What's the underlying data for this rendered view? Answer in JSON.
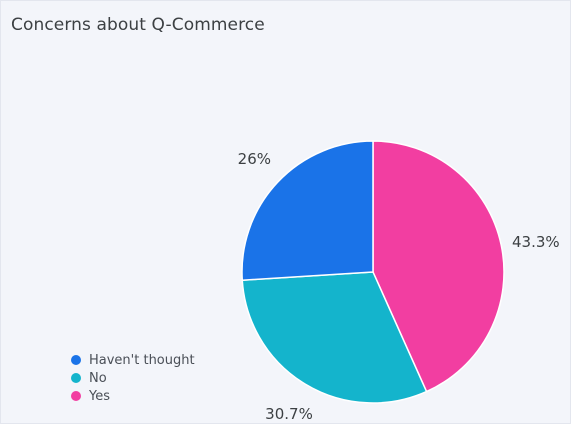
{
  "chart_data": {
    "type": "pie",
    "title": "Concerns about Q-Commerce",
    "legend_position": "bottom-left",
    "slices": [
      {
        "name": "Yes",
        "value": 43.3,
        "label": "43.3%",
        "color": "#f23ea1"
      },
      {
        "name": "No",
        "value": 30.7,
        "label": "30.7%",
        "color": "#14b4cc"
      },
      {
        "name": "Haven't thought",
        "value": 26,
        "label": "26%",
        "color": "#1a73e8"
      }
    ],
    "legend": [
      {
        "name": "Haven't thought",
        "color": "#1a73e8"
      },
      {
        "name": "No",
        "color": "#14b4cc"
      },
      {
        "name": "Yes",
        "color": "#f23ea1"
      }
    ]
  }
}
